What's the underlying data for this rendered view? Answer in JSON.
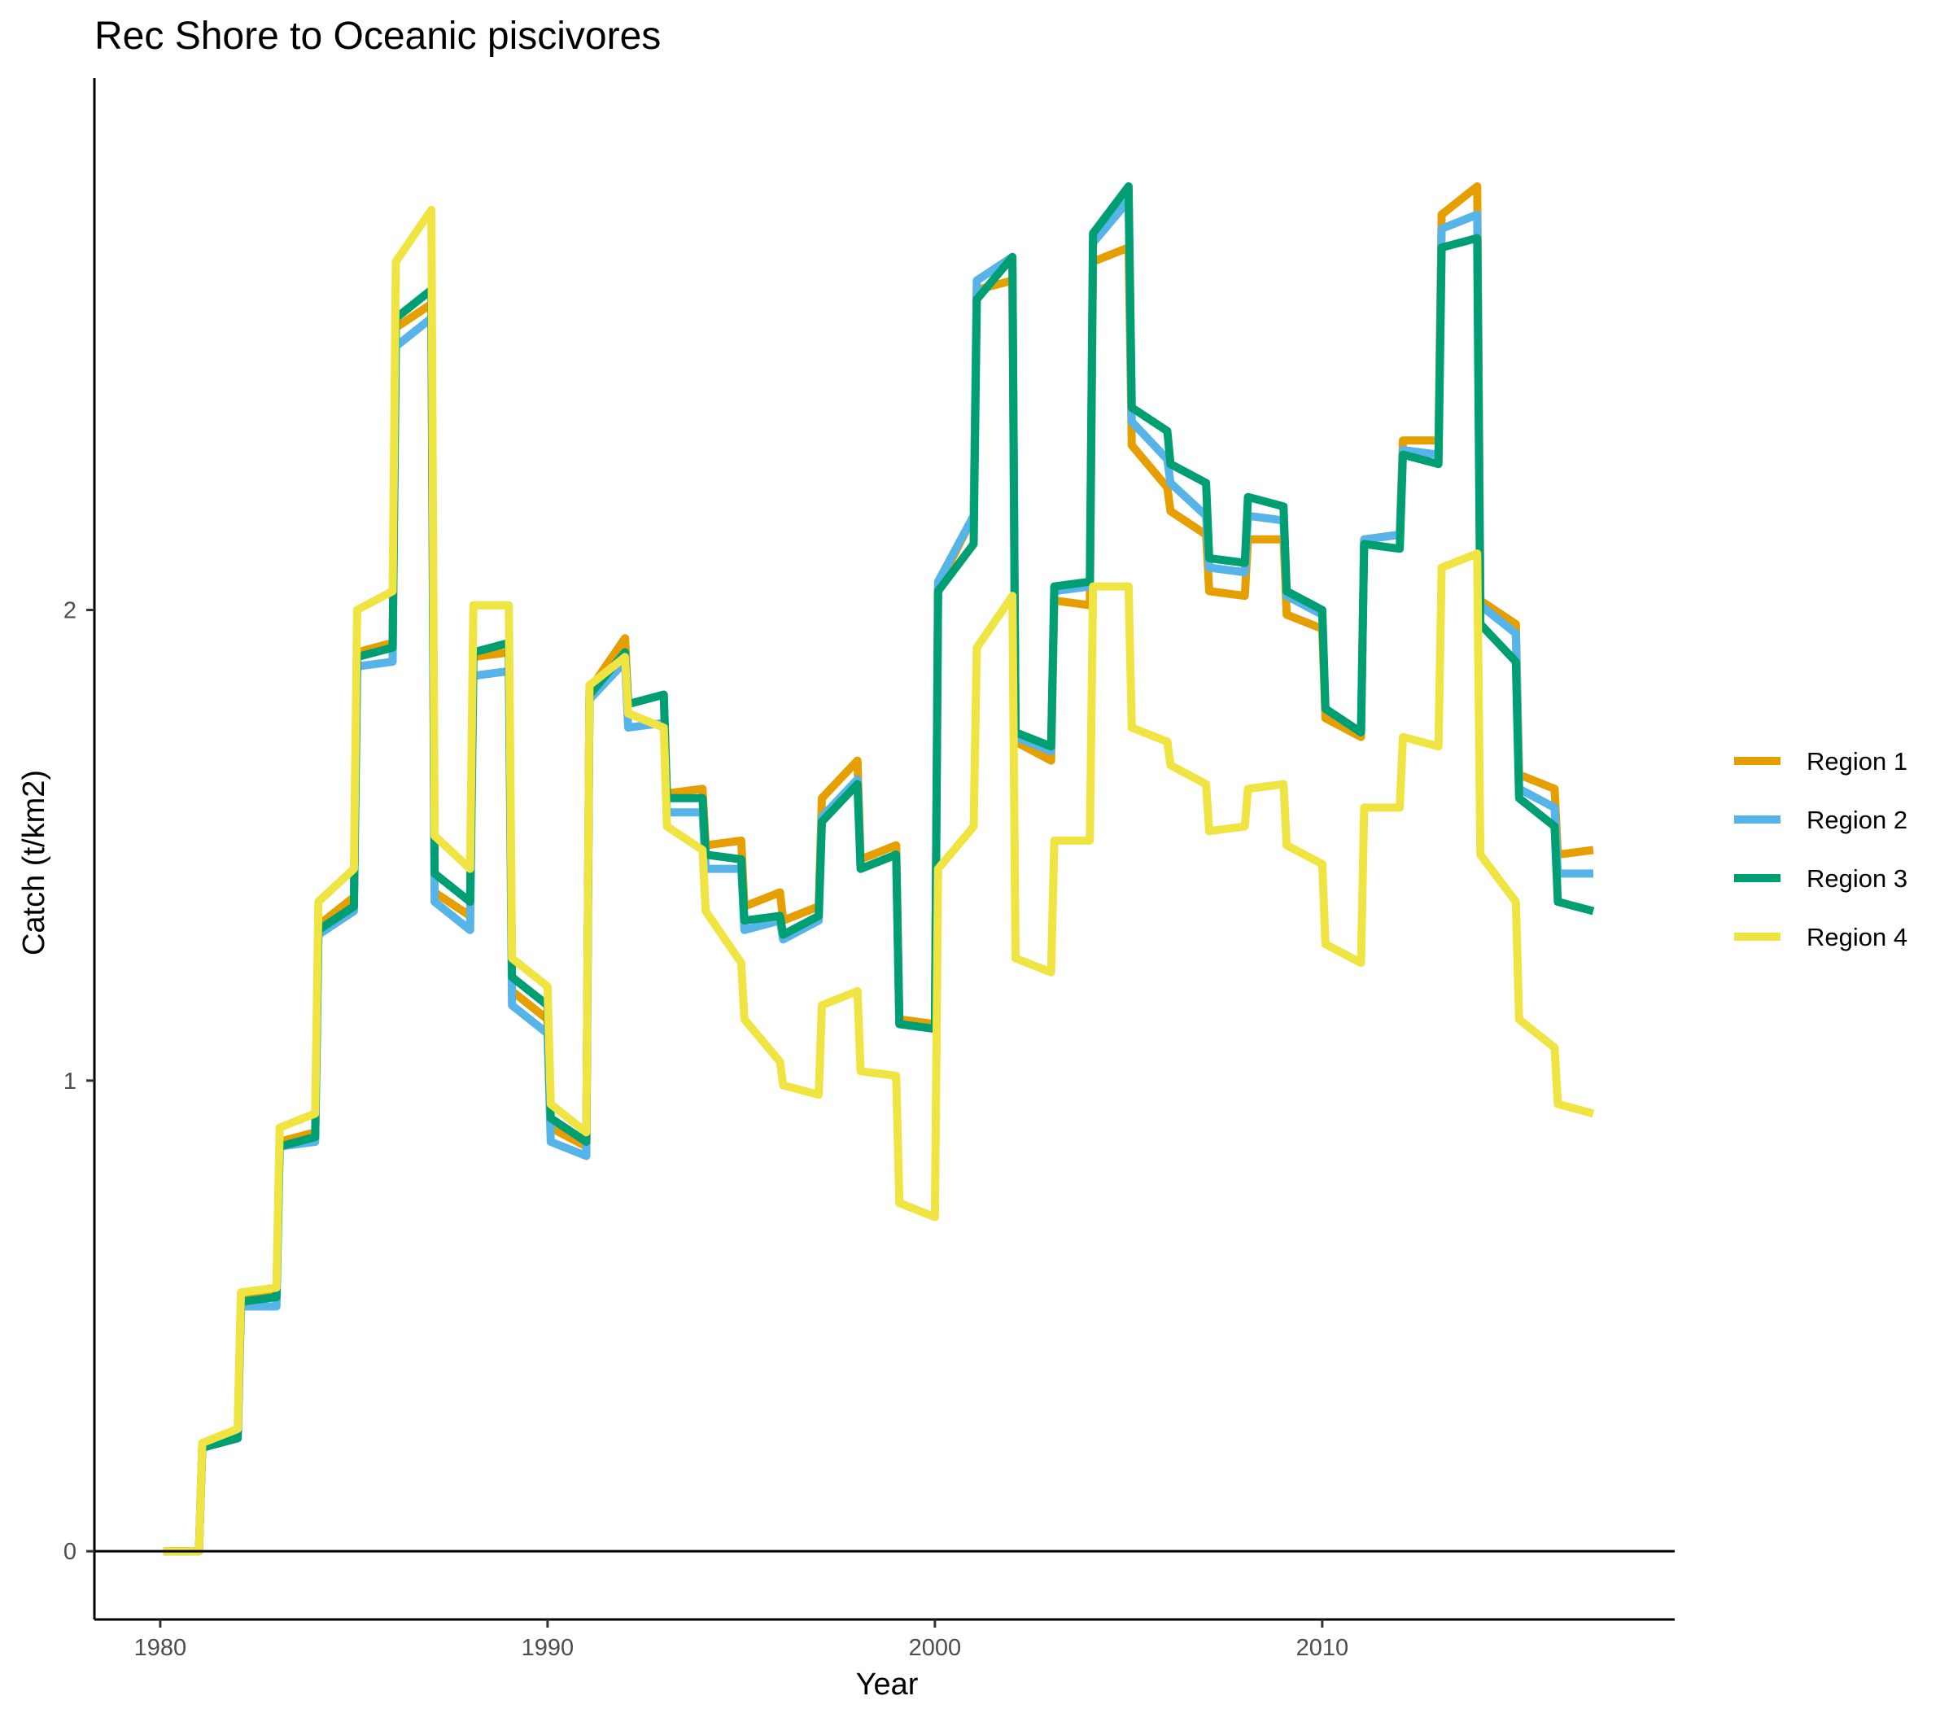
{
  "chart_data": {
    "type": "line",
    "title": "Rec Shore to Oceanic piscivores",
    "xlabel": "Year",
    "ylabel": "Catch (t/km2)",
    "xlim": [
      1978.3,
      2019.1
    ],
    "ylim": [
      -0.145,
      3.13
    ],
    "x_ticks": [
      1980,
      1990,
      2000,
      2010
    ],
    "y_ticks": [
      0,
      1,
      2
    ],
    "zero_line": true,
    "grid": false,
    "legend_position": "right",
    "x": [
      1980.083,
      1981.0,
      1981.083,
      1982.0,
      1982.083,
      1983.0,
      1983.083,
      1984.0,
      1984.083,
      1985.0,
      1985.083,
      1986.0,
      1986.083,
      1987.0,
      1987.083,
      1988.0,
      1988.083,
      1989.0,
      1989.083,
      1990.0,
      1990.083,
      1991.0,
      1991.083,
      1992.0,
      1992.083,
      1993.0,
      1993.083,
      1994.0,
      1994.083,
      1995.0,
      1995.083,
      1996.0,
      1996.083,
      1997.0,
      1997.083,
      1998.0,
      1998.083,
      1999.0,
      1999.083,
      2000.0,
      2000.083,
      2001.0,
      2001.083,
      2002.0,
      2002.083,
      2003.0,
      2003.083,
      2004.0,
      2004.083,
      2005.0,
      2005.083,
      2006.0,
      2006.083,
      2007.0,
      2007.083,
      2008.0,
      2008.083,
      2009.0,
      2009.083,
      2010.0,
      2010.083,
      2011.0,
      2011.083,
      2012.0,
      2012.083,
      2013.0,
      2013.083,
      2014.0,
      2014.083,
      2015.0,
      2015.083,
      2016.0,
      2016.083,
      2017.0
    ],
    "series": [
      {
        "name": "Region 1",
        "color": "#E69F00",
        "values": [
          0.0,
          0.0,
          0.22,
          0.25,
          0.54,
          0.55,
          0.87,
          0.89,
          1.33,
          1.39,
          1.91,
          1.93,
          2.6,
          2.65,
          1.4,
          1.35,
          1.9,
          1.91,
          1.19,
          1.13,
          0.9,
          0.86,
          1.83,
          1.94,
          1.8,
          1.82,
          1.61,
          1.62,
          1.5,
          1.51,
          1.37,
          1.4,
          1.34,
          1.37,
          1.6,
          1.68,
          1.47,
          1.5,
          1.13,
          1.12,
          2.05,
          2.2,
          2.68,
          2.7,
          1.72,
          1.68,
          2.02,
          2.01,
          2.74,
          2.77,
          2.35,
          2.26,
          2.21,
          2.16,
          2.04,
          2.03,
          2.15,
          2.15,
          1.99,
          1.96,
          1.77,
          1.73,
          2.15,
          2.16,
          2.36,
          2.36,
          2.84,
          2.9,
          2.02,
          1.97,
          1.65,
          1.62,
          1.48,
          1.49
        ]
      },
      {
        "name": "Region 2",
        "color": "#56B4E9",
        "values": [
          0.0,
          0.0,
          0.22,
          0.24,
          0.52,
          0.52,
          0.86,
          0.87,
          1.31,
          1.36,
          1.88,
          1.89,
          2.56,
          2.62,
          1.38,
          1.32,
          1.86,
          1.87,
          1.16,
          1.1,
          0.87,
          0.84,
          1.81,
          1.89,
          1.75,
          1.76,
          1.57,
          1.57,
          1.45,
          1.45,
          1.32,
          1.34,
          1.3,
          1.34,
          1.56,
          1.64,
          1.45,
          1.48,
          1.12,
          1.11,
          2.06,
          2.2,
          2.7,
          2.75,
          1.73,
          1.7,
          2.04,
          2.05,
          2.78,
          2.87,
          2.4,
          2.32,
          2.27,
          2.2,
          2.09,
          2.08,
          2.2,
          2.19,
          2.03,
          1.99,
          1.79,
          1.74,
          2.15,
          2.16,
          2.34,
          2.33,
          2.81,
          2.84,
          2.01,
          1.95,
          1.62,
          1.58,
          1.44,
          1.44
        ]
      },
      {
        "name": "Region 3",
        "color": "#009E73",
        "values": [
          0.0,
          0.0,
          0.22,
          0.24,
          0.53,
          0.54,
          0.86,
          0.88,
          1.32,
          1.37,
          1.9,
          1.92,
          2.62,
          2.68,
          1.44,
          1.38,
          1.91,
          1.93,
          1.22,
          1.16,
          0.92,
          0.87,
          1.82,
          1.91,
          1.8,
          1.82,
          1.6,
          1.6,
          1.48,
          1.47,
          1.34,
          1.35,
          1.31,
          1.35,
          1.55,
          1.63,
          1.45,
          1.48,
          1.12,
          1.11,
          2.04,
          2.14,
          2.66,
          2.75,
          1.74,
          1.71,
          2.05,
          2.06,
          2.8,
          2.9,
          2.43,
          2.38,
          2.31,
          2.27,
          2.11,
          2.1,
          2.24,
          2.22,
          2.04,
          2.0,
          1.79,
          1.74,
          2.14,
          2.13,
          2.33,
          2.31,
          2.77,
          2.79,
          1.97,
          1.89,
          1.6,
          1.54,
          1.38,
          1.36
        ]
      },
      {
        "name": "Region 4",
        "color": "#F0E442",
        "values": [
          0.0,
          0.0,
          0.23,
          0.26,
          0.55,
          0.56,
          0.9,
          0.93,
          1.38,
          1.45,
          2.0,
          2.04,
          2.74,
          2.85,
          1.52,
          1.45,
          2.01,
          2.01,
          1.26,
          1.2,
          0.95,
          0.89,
          1.84,
          1.9,
          1.78,
          1.75,
          1.54,
          1.49,
          1.36,
          1.25,
          1.13,
          1.04,
          0.99,
          0.97,
          1.16,
          1.19,
          1.02,
          1.01,
          0.74,
          0.71,
          1.45,
          1.54,
          1.92,
          2.03,
          1.26,
          1.23,
          1.51,
          1.51,
          2.05,
          2.05,
          1.75,
          1.72,
          1.67,
          1.63,
          1.53,
          1.54,
          1.62,
          1.63,
          1.5,
          1.46,
          1.29,
          1.25,
          1.58,
          1.58,
          1.73,
          1.71,
          2.09,
          2.12,
          1.48,
          1.38,
          1.13,
          1.07,
          0.95,
          0.93
        ]
      }
    ]
  }
}
